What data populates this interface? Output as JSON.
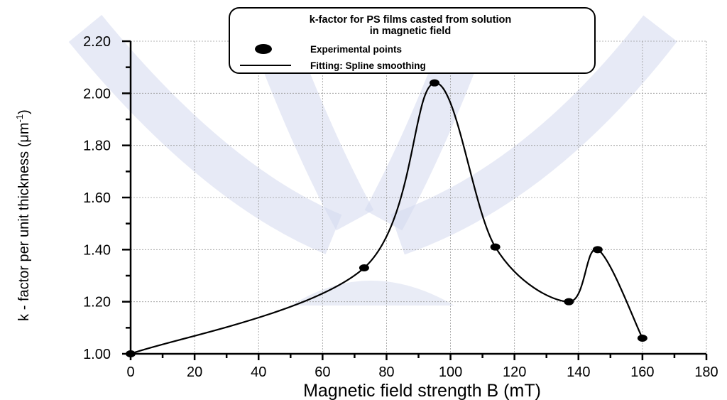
{
  "chart_data": {
    "type": "line",
    "xlabel": "Magnetic field strength  B  (mT)",
    "ylabel_main": "k - factor per unit thickness (",
    "ylabel_unit": "μm",
    "ylabel_sup": "-1",
    "ylabel_close": ")",
    "xlim": [
      0,
      180
    ],
    "ylim": [
      1.0,
      2.2
    ],
    "x_ticks": [
      0,
      20,
      40,
      60,
      80,
      100,
      120,
      140,
      160,
      180
    ],
    "y_ticks": [
      "1.00",
      "1.20",
      "1.40",
      "1.60",
      "1.80",
      "2.00",
      "2.20"
    ],
    "grid": true,
    "legend_placement": "top-center",
    "legend": {
      "title_line1": "k-factor for PS films casted from solution",
      "title_line2": "in magnetic field",
      "entries": [
        "Experimental points",
        "Fitting:  Spline smoothing"
      ]
    },
    "series": [
      {
        "name": "Experimental points",
        "x": [
          0,
          73,
          95,
          114,
          137,
          146,
          160
        ],
        "y": [
          1.0,
          1.33,
          2.04,
          1.41,
          1.2,
          1.4,
          1.06
        ]
      }
    ]
  }
}
